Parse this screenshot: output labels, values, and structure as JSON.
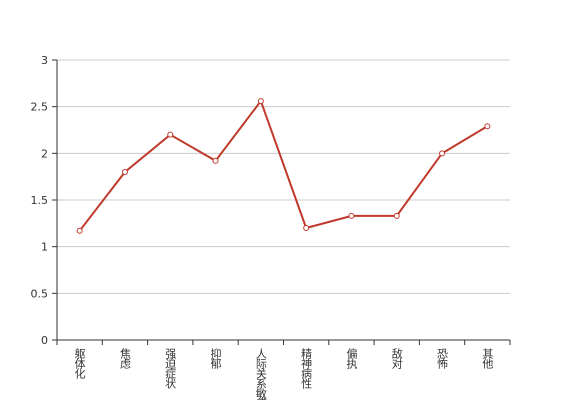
{
  "chart_data": {
    "type": "line",
    "categories": [
      "躯体化",
      "焦虑",
      "强迫症状",
      "抑郁",
      "人际关系敏感",
      "精神病性",
      "偏执",
      "敌对",
      "恐怖",
      "其他"
    ],
    "series": [
      {
        "color": "#c0392b",
        "values": [
          1.17,
          1.8,
          2.2,
          1.92,
          2.56,
          1.2,
          1.33,
          1.33,
          2.0,
          2.29
        ]
      }
    ],
    "ylim": [
      0,
      3
    ],
    "yticks": [
      0,
      0.5,
      1,
      1.5,
      2,
      2.5,
      3
    ],
    "grid": true
  }
}
